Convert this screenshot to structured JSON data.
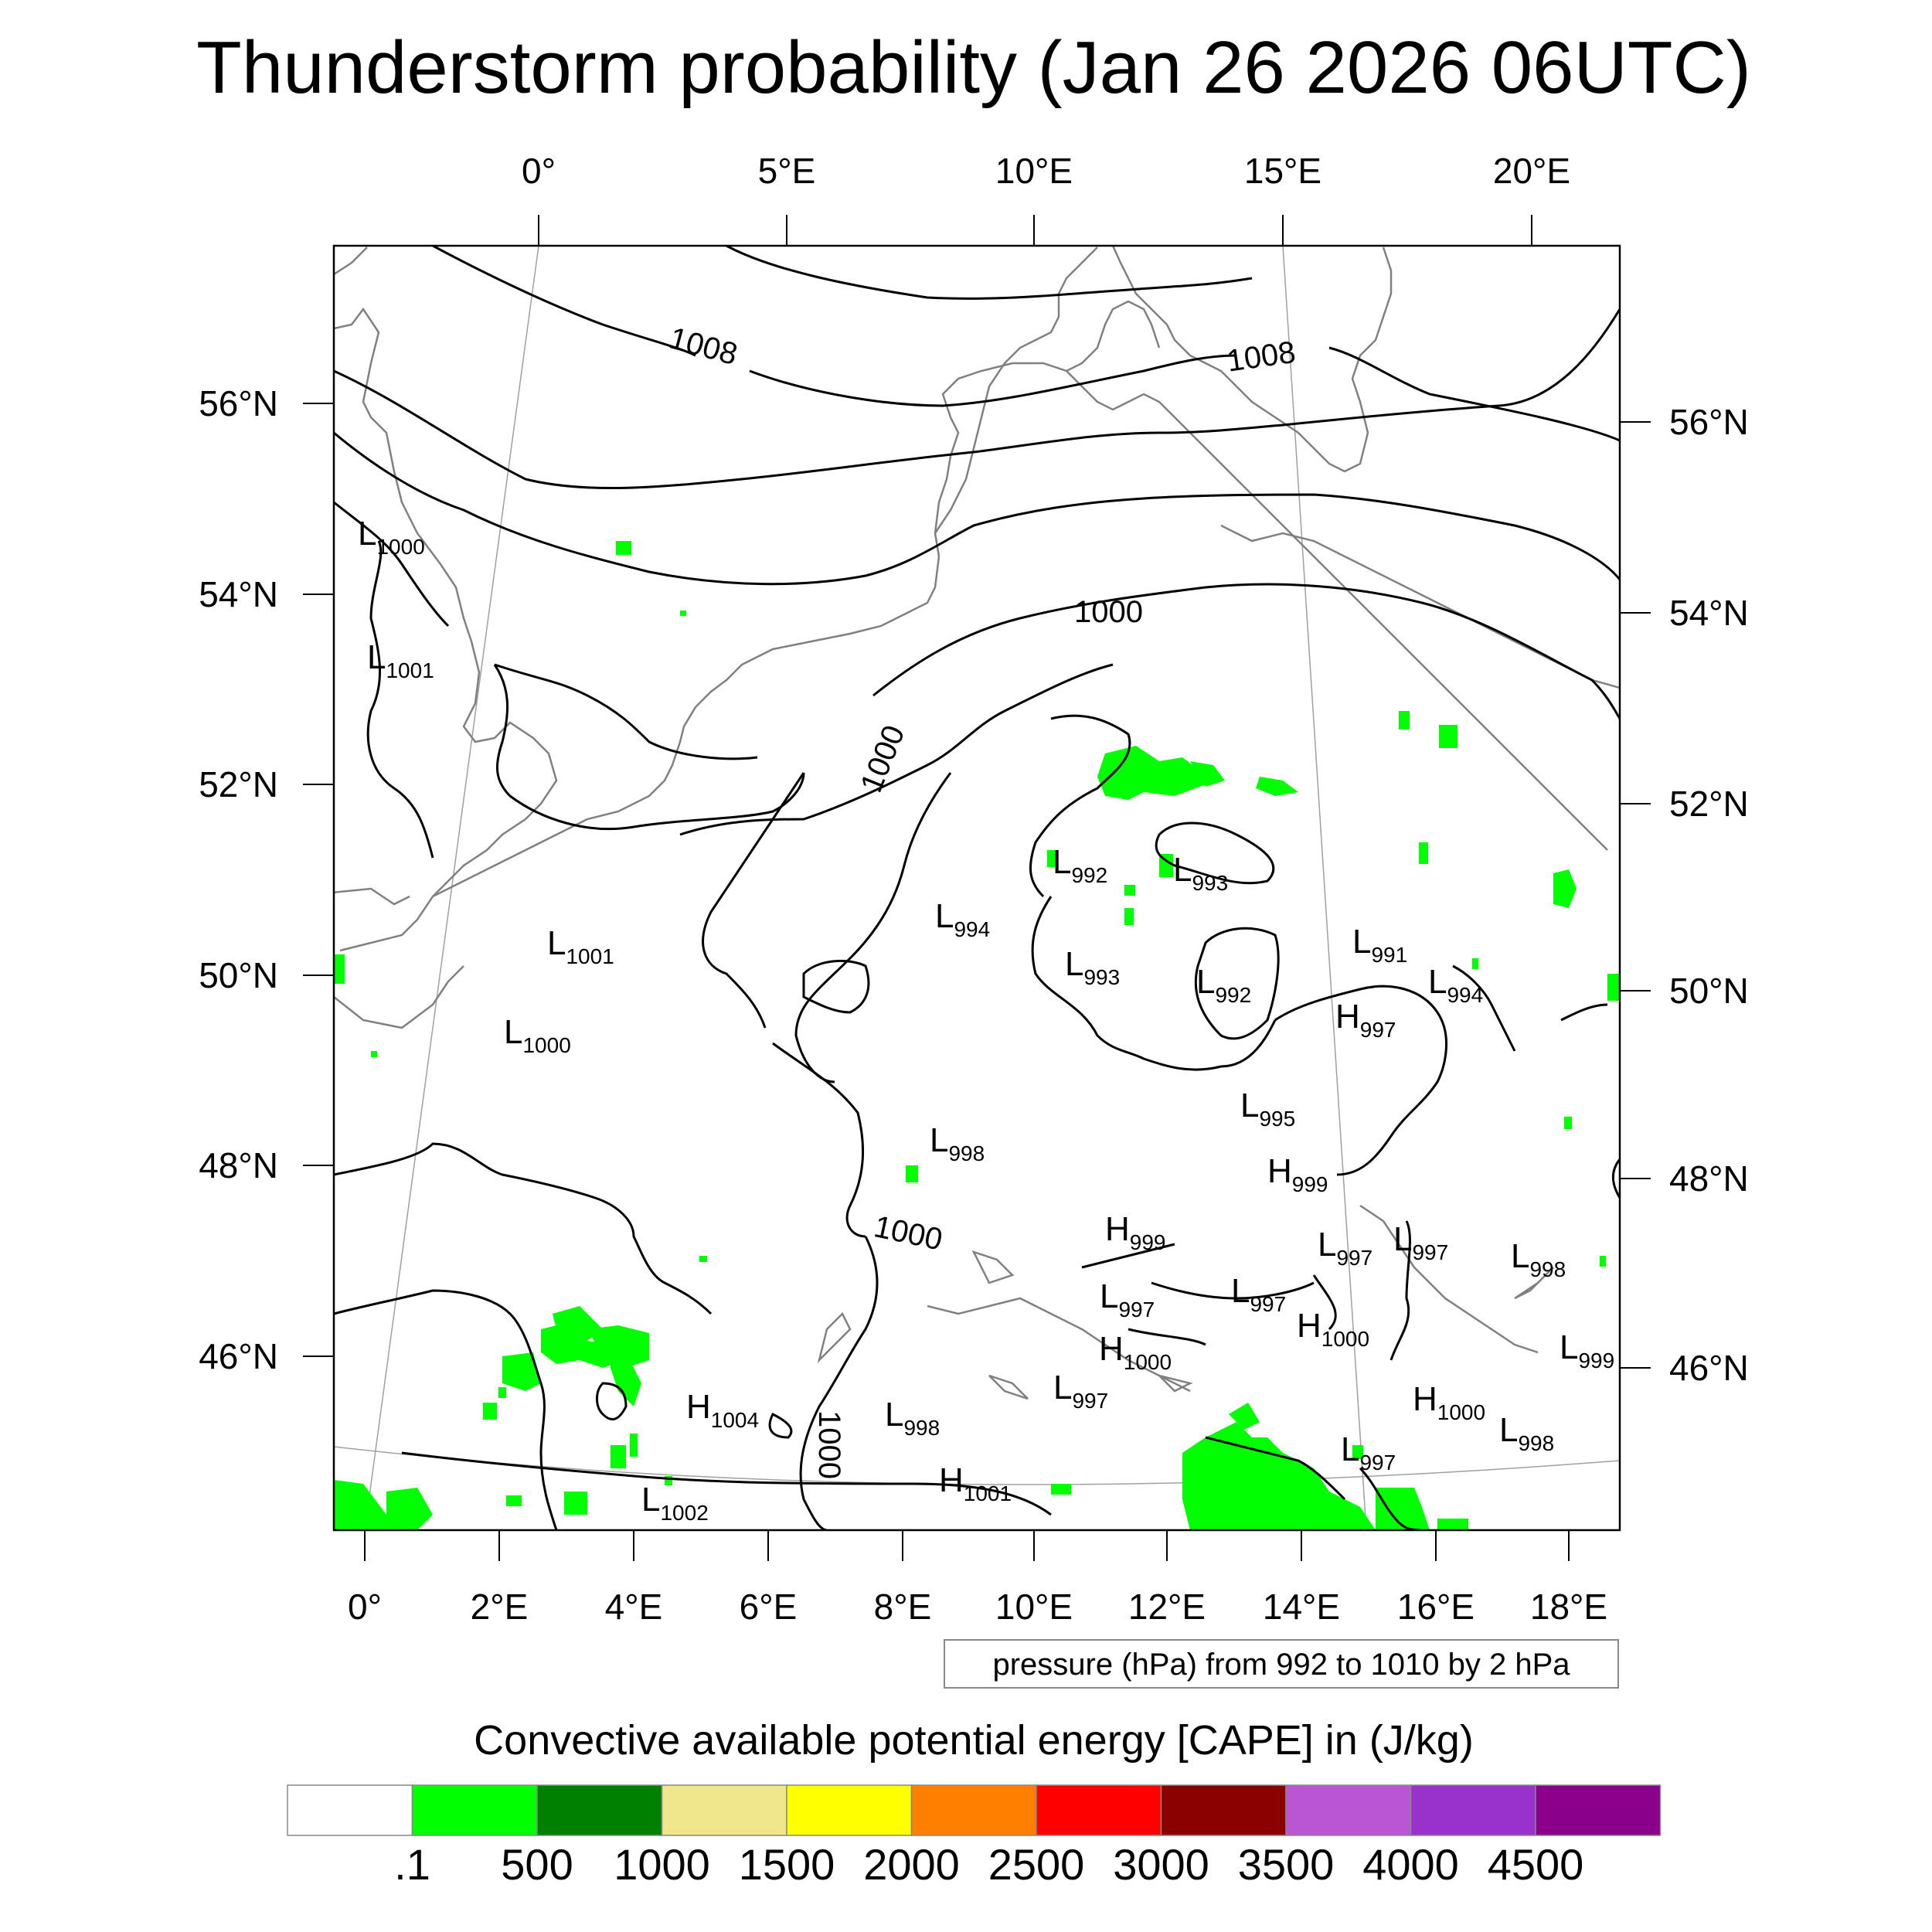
{
  "title": "Thunderstorm probability (Jan 26 2026 06UTC)",
  "top_lon_ticks": [
    "0°",
    "5°E",
    "10°E",
    "15°E",
    "20°E"
  ],
  "bottom_lon_ticks": [
    "0°",
    "2°E",
    "4°E",
    "6°E",
    "8°E",
    "10°E",
    "12°E",
    "14°E",
    "16°E",
    "18°E"
  ],
  "left_lat_ticks": [
    "56°N",
    "54°N",
    "52°N",
    "50°N",
    "48°N",
    "46°N"
  ],
  "right_lat_ticks": [
    "56°N",
    "54°N",
    "52°N",
    "50°N",
    "48°N",
    "46°N"
  ],
  "contour_labels": [
    "1008",
    "1008",
    "1000",
    "1000",
    "1000",
    "1000"
  ],
  "pressure_systems": [
    {
      "type": "L",
      "value": "1000"
    },
    {
      "type": "L",
      "value": "1001"
    },
    {
      "type": "L",
      "value": "1001"
    },
    {
      "type": "L",
      "value": "1000"
    },
    {
      "type": "L",
      "value": "992"
    },
    {
      "type": "L",
      "value": "993"
    },
    {
      "type": "L",
      "value": "994"
    },
    {
      "type": "L",
      "value": "993"
    },
    {
      "type": "L",
      "value": "992"
    },
    {
      "type": "L",
      "value": "991"
    },
    {
      "type": "L",
      "value": "994"
    },
    {
      "type": "H",
      "value": "997"
    },
    {
      "type": "L",
      "value": "995"
    },
    {
      "type": "L",
      "value": "998"
    },
    {
      "type": "H",
      "value": "999"
    },
    {
      "type": "H",
      "value": "999"
    },
    {
      "type": "L",
      "value": "997"
    },
    {
      "type": "L",
      "value": "997"
    },
    {
      "type": "L",
      "value": "998"
    },
    {
      "type": "L",
      "value": "997"
    },
    {
      "type": "L",
      "value": "997"
    },
    {
      "type": "H",
      "value": "1000"
    },
    {
      "type": "H",
      "value": "1000"
    },
    {
      "type": "L",
      "value": "999"
    },
    {
      "type": "H",
      "value": "1004"
    },
    {
      "type": "L",
      "value": "998"
    },
    {
      "type": "L",
      "value": "997"
    },
    {
      "type": "H",
      "value": "1000"
    },
    {
      "type": "L",
      "value": "998"
    },
    {
      "type": "L",
      "value": "997"
    },
    {
      "type": "H",
      "value": "1001"
    },
    {
      "type": "L",
      "value": "1002"
    }
  ],
  "contour_legend": "pressure (hPa) from 992 to 1010 by 2 hPa",
  "colorbar": {
    "title": "Convective available potential energy [CAPE] in (J/kg)",
    "colors": [
      "#ffffff",
      "#00ff00",
      "#008000",
      "#f0e68c",
      "#ffff00",
      "#ff8000",
      "#ff0000",
      "#8b0000",
      "#ba55d3",
      "#9932cc",
      "#8b008b"
    ],
    "labels": [
      ".1",
      "500",
      "1000",
      "1500",
      "2000",
      "2500",
      "3000",
      "3500",
      "4000",
      "4500"
    ]
  },
  "colors": {
    "cape_low": "#00ff00",
    "coastline": "#808080",
    "isobar": "#000000"
  }
}
